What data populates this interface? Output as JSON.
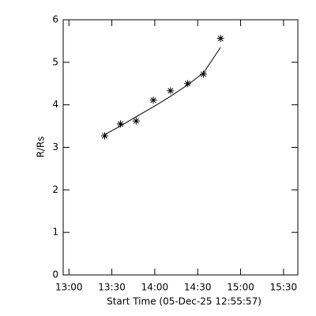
{
  "chart_data": {
    "type": "scatter",
    "x_label": "Start Time (05-Dec-25 12:55:57)",
    "y_label": "R/Rs",
    "x": [
      "13:25",
      "13:36",
      "13:47",
      "13:59",
      "14:11",
      "14:23",
      "14:34",
      "14:46"
    ],
    "series": [
      {
        "color": "#000000",
        "marker": "asterisk",
        "values": [
          3.27,
          3.55,
          3.62,
          4.11,
          4.33,
          4.5,
          4.72,
          5.56
        ]
      },
      {
        "color": "#000000",
        "marker": "line",
        "values": [
          3.3,
          3.5,
          3.72,
          3.95,
          4.2,
          4.47,
          4.75,
          5.35
        ]
      }
    ],
    "xlim": [
      "12:56",
      "15:40"
    ],
    "xticks": [
      "13:00",
      "13:30",
      "14:00",
      "14:30",
      "15:00",
      "15:30"
    ],
    "ylim": [
      0,
      6
    ],
    "yticks": [
      0,
      1,
      2,
      3,
      4,
      5,
      6
    ],
    "grid": false
  }
}
